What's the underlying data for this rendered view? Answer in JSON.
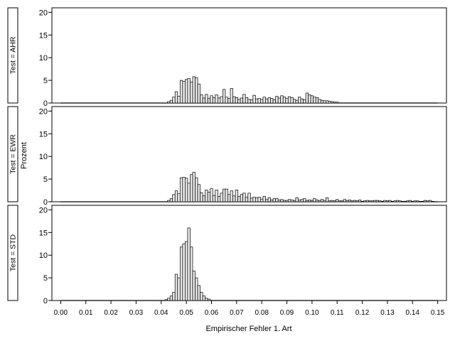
{
  "chart_data": {
    "type": "bar",
    "xlabel": "Empirischer Fehler 1. Art",
    "ylabel": "Prozent",
    "x_ticks": [
      0.0,
      0.01,
      0.02,
      0.03,
      0.04,
      0.05,
      0.06,
      0.07,
      0.08,
      0.09,
      0.1,
      0.11,
      0.12,
      0.13,
      0.14,
      0.15
    ],
    "x_tick_labels": [
      "0.00",
      "0.01",
      "0.02",
      "0.03",
      "0.04",
      "0.05",
      "0.06",
      "0.07",
      "0.08",
      "0.09",
      "0.10",
      "0.11",
      "0.12",
      "0.13",
      "0.14",
      "0.15"
    ],
    "xlim": [
      -0.0035,
      0.1535
    ],
    "bin_width": 0.001,
    "y_ticks": [
      0,
      5,
      10,
      15,
      20
    ],
    "ylim": [
      0,
      21
    ],
    "grid": false,
    "panels": [
      {
        "label": "Test = AHR",
        "x": [
          0.043,
          0.044,
          0.045,
          0.046,
          0.047,
          0.048,
          0.049,
          0.05,
          0.051,
          0.052,
          0.053,
          0.054,
          0.055,
          0.056,
          0.057,
          0.058,
          0.059,
          0.06,
          0.061,
          0.062,
          0.063,
          0.064,
          0.065,
          0.066,
          0.067,
          0.068,
          0.069,
          0.07,
          0.071,
          0.072,
          0.073,
          0.074,
          0.075,
          0.076,
          0.077,
          0.078,
          0.079,
          0.08,
          0.081,
          0.082,
          0.083,
          0.084,
          0.085,
          0.086,
          0.087,
          0.088,
          0.089,
          0.09,
          0.091,
          0.092,
          0.093,
          0.094,
          0.095,
          0.096,
          0.097,
          0.098,
          0.099,
          0.1,
          0.101,
          0.102,
          0.103,
          0.104,
          0.105,
          0.106,
          0.107,
          0.108,
          0.109,
          0.11
        ],
        "values": [
          0.3,
          0.6,
          1.3,
          2.5,
          1.5,
          5.0,
          4.8,
          5.2,
          5.4,
          4.6,
          5.8,
          5.6,
          4.2,
          1.8,
          1.1,
          1.9,
          1.0,
          1.6,
          1.2,
          1.8,
          1.1,
          1.4,
          3.0,
          1.3,
          1.0,
          3.2,
          1.4,
          1.2,
          0.8,
          1.1,
          1.9,
          1.2,
          0.8,
          0.7,
          1.7,
          0.9,
          1.0,
          0.8,
          1.3,
          0.9,
          1.2,
          1.0,
          0.7,
          1.5,
          1.1,
          1.6,
          1.3,
          1.0,
          1.4,
          1.2,
          0.8,
          0.6,
          1.3,
          0.9,
          0.7,
          2.2,
          1.8,
          1.6,
          1.3,
          1.2,
          0.8,
          0.6,
          0.5,
          0.5,
          0.4,
          0.3,
          0.2,
          0.2
        ]
      },
      {
        "label": "Test = EWR",
        "x": [
          0.043,
          0.044,
          0.045,
          0.046,
          0.047,
          0.048,
          0.049,
          0.05,
          0.051,
          0.052,
          0.053,
          0.054,
          0.055,
          0.056,
          0.057,
          0.058,
          0.059,
          0.06,
          0.061,
          0.062,
          0.063,
          0.064,
          0.065,
          0.066,
          0.067,
          0.068,
          0.069,
          0.07,
          0.071,
          0.072,
          0.073,
          0.074,
          0.075,
          0.076,
          0.077,
          0.078,
          0.079,
          0.08,
          0.081,
          0.082,
          0.083,
          0.084,
          0.085,
          0.086,
          0.087,
          0.088,
          0.089,
          0.09,
          0.091,
          0.092,
          0.093,
          0.094,
          0.095,
          0.096,
          0.097,
          0.098,
          0.099,
          0.1,
          0.101,
          0.102,
          0.103,
          0.104,
          0.105,
          0.106,
          0.107,
          0.108,
          0.109,
          0.11,
          0.111,
          0.112,
          0.113,
          0.114,
          0.115,
          0.116,
          0.117,
          0.118,
          0.119,
          0.12,
          0.121,
          0.122,
          0.123,
          0.124,
          0.125,
          0.126,
          0.127,
          0.128,
          0.129,
          0.13,
          0.131,
          0.132,
          0.133,
          0.134,
          0.135,
          0.136,
          0.137,
          0.138,
          0.139,
          0.14,
          0.141,
          0.142,
          0.143,
          0.144,
          0.145,
          0.146,
          0.147,
          0.148
        ],
        "values": [
          0.3,
          0.7,
          1.6,
          2.4,
          1.8,
          5.3,
          5.4,
          5.2,
          4.1,
          6.0,
          6.5,
          5.3,
          3.8,
          2.0,
          1.3,
          2.6,
          2.1,
          2.9,
          1.4,
          2.6,
          1.2,
          1.9,
          2.8,
          2.8,
          1.6,
          2.4,
          1.3,
          2.6,
          1.2,
          1.6,
          1.9,
          1.0,
          1.9,
          0.8,
          1.0,
          0.9,
          1.0,
          0.6,
          1.2,
          0.5,
          0.9,
          0.4,
          0.7,
          0.7,
          0.4,
          0.5,
          0.3,
          0.3,
          0.5,
          0.4,
          0.3,
          0.9,
          0.4,
          0.5,
          0.7,
          0.3,
          0.4,
          0.3,
          0.7,
          0.4,
          0.3,
          0.5,
          0.3,
          0.9,
          0.2,
          0.3,
          0.2,
          0.5,
          0.2,
          0.2,
          0.5,
          0.3,
          0.4,
          0.2,
          0.3,
          0.2,
          0.4,
          0.1,
          0.2,
          0.3,
          0.2,
          0.2,
          0.3,
          0.3,
          0.2,
          0.1,
          0.3,
          0.2,
          0.3,
          0.1,
          0.2,
          0.3,
          0.2,
          0.1,
          0.1,
          0.2,
          0.3,
          0.1,
          0.2,
          0.2,
          0.1,
          0.1,
          0.3,
          0.2,
          0.3,
          0.1
        ]
      },
      {
        "label": "Test = STD",
        "x": [
          0.042,
          0.043,
          0.044,
          0.045,
          0.046,
          0.047,
          0.048,
          0.049,
          0.05,
          0.051,
          0.052,
          0.053,
          0.054,
          0.055,
          0.056,
          0.057,
          0.058,
          0.059
        ],
        "values": [
          0.2,
          0.5,
          1.0,
          1.8,
          5.8,
          5.0,
          11.8,
          12.5,
          13.0,
          16.0,
          11.8,
          6.5,
          5.0,
          3.3,
          1.8,
          1.0,
          0.5,
          0.3
        ]
      }
    ]
  }
}
